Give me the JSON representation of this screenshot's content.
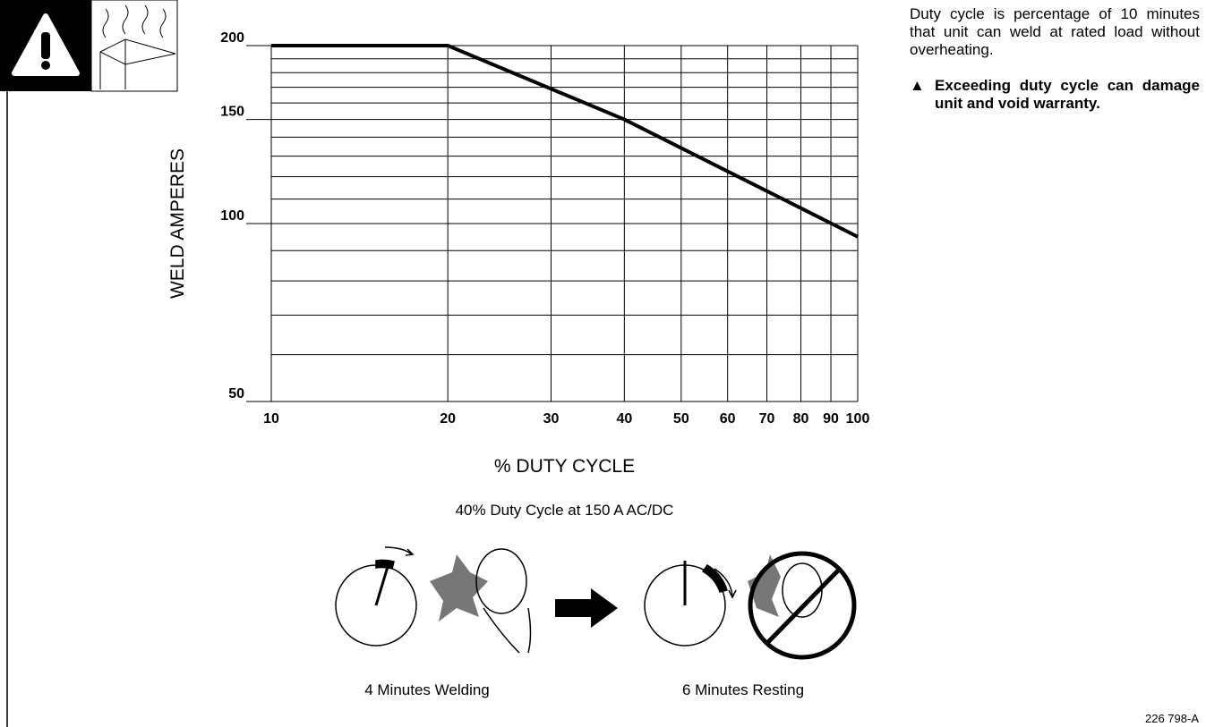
{
  "chart_data": {
    "type": "line",
    "x_label": "% DUTY CYCLE",
    "y_label": "WELD AMPERES",
    "x": [
      10,
      20,
      40,
      100
    ],
    "series": [
      {
        "name": "Weld amperes",
        "color": "#000000",
        "values": [
          200,
          200,
          150,
          95
        ]
      }
    ],
    "xlim": [
      10,
      100
    ],
    "ylim": [
      50,
      200
    ],
    "xticks": [
      10,
      20,
      30,
      40,
      50,
      60,
      70,
      80,
      90,
      100
    ],
    "yticks": [
      50,
      100,
      150,
      200
    ],
    "y_minor_ticks": [
      60,
      70,
      80,
      90,
      110,
      120,
      130,
      140,
      160,
      170,
      180,
      190
    ],
    "log_x": true,
    "log_y": true,
    "grid": true
  },
  "caption": "40% Duty Cycle at 150 A AC/DC",
  "welding_label": "4 Minutes Welding",
  "resting_label": "6 Minutes Resting",
  "note": "Duty cycle is percentage of 10 minutes that unit can weld at rated load without overheating.",
  "warning": "Exceeding duty cycle can damage unit and void warranty.",
  "figure_code": "226 798-A"
}
